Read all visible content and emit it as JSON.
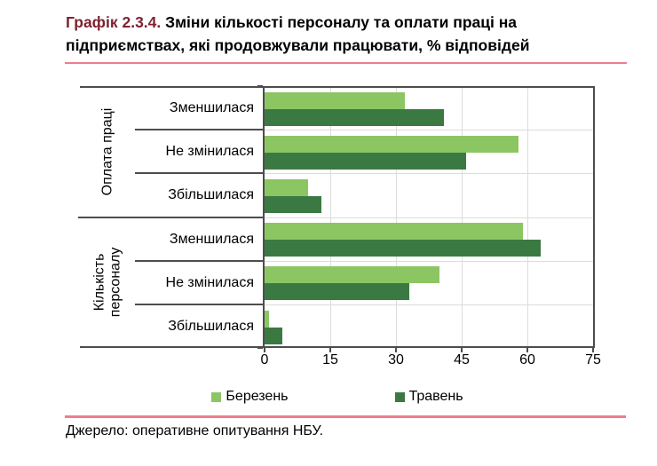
{
  "title": {
    "prefix": "Графік 2.3.4.",
    "rest": " Зміни кількості персоналу та оплати праці на підприємствах, які продовжували працювати, % відповідей"
  },
  "source_line": "Джерело: оперативне опитування НБУ.",
  "colors": {
    "series_march": "#8CC663",
    "series_may": "#3A7A42",
    "title_accent": "#7D2230",
    "rule_pink": "#EE7D8E",
    "axis": "#4D4D4D",
    "grid": "#DCDCDC"
  },
  "chart_data": {
    "type": "bar",
    "orientation": "horizontal",
    "title": "Зміни кількості персоналу та оплати праці на підприємствах, які продовжували працювати, % відповідей",
    "xlabel": "",
    "ylabel": "",
    "xlim": [
      0,
      75
    ],
    "x_ticks": [
      0,
      15,
      30,
      45,
      60,
      75
    ],
    "grid": true,
    "legend_position": "bottom",
    "legend": [
      "Березень",
      "Травень"
    ],
    "groups": [
      {
        "label": "Оплата праці",
        "categories": [
          "Зменшилася",
          "Не змінилася",
          "Збільшилася"
        ],
        "series": [
          {
            "name": "Березень",
            "values": [
              32,
              58,
              10
            ]
          },
          {
            "name": "Травень",
            "values": [
              41,
              46,
              13
            ]
          }
        ]
      },
      {
        "label": "Кількість персоналу",
        "categories": [
          "Зменшилася",
          "Не змінилася",
          "Збільшилася"
        ],
        "series": [
          {
            "name": "Березень",
            "values": [
              59,
              40,
              1
            ]
          },
          {
            "name": "Травень",
            "values": [
              63,
              33,
              4
            ]
          }
        ]
      }
    ]
  }
}
